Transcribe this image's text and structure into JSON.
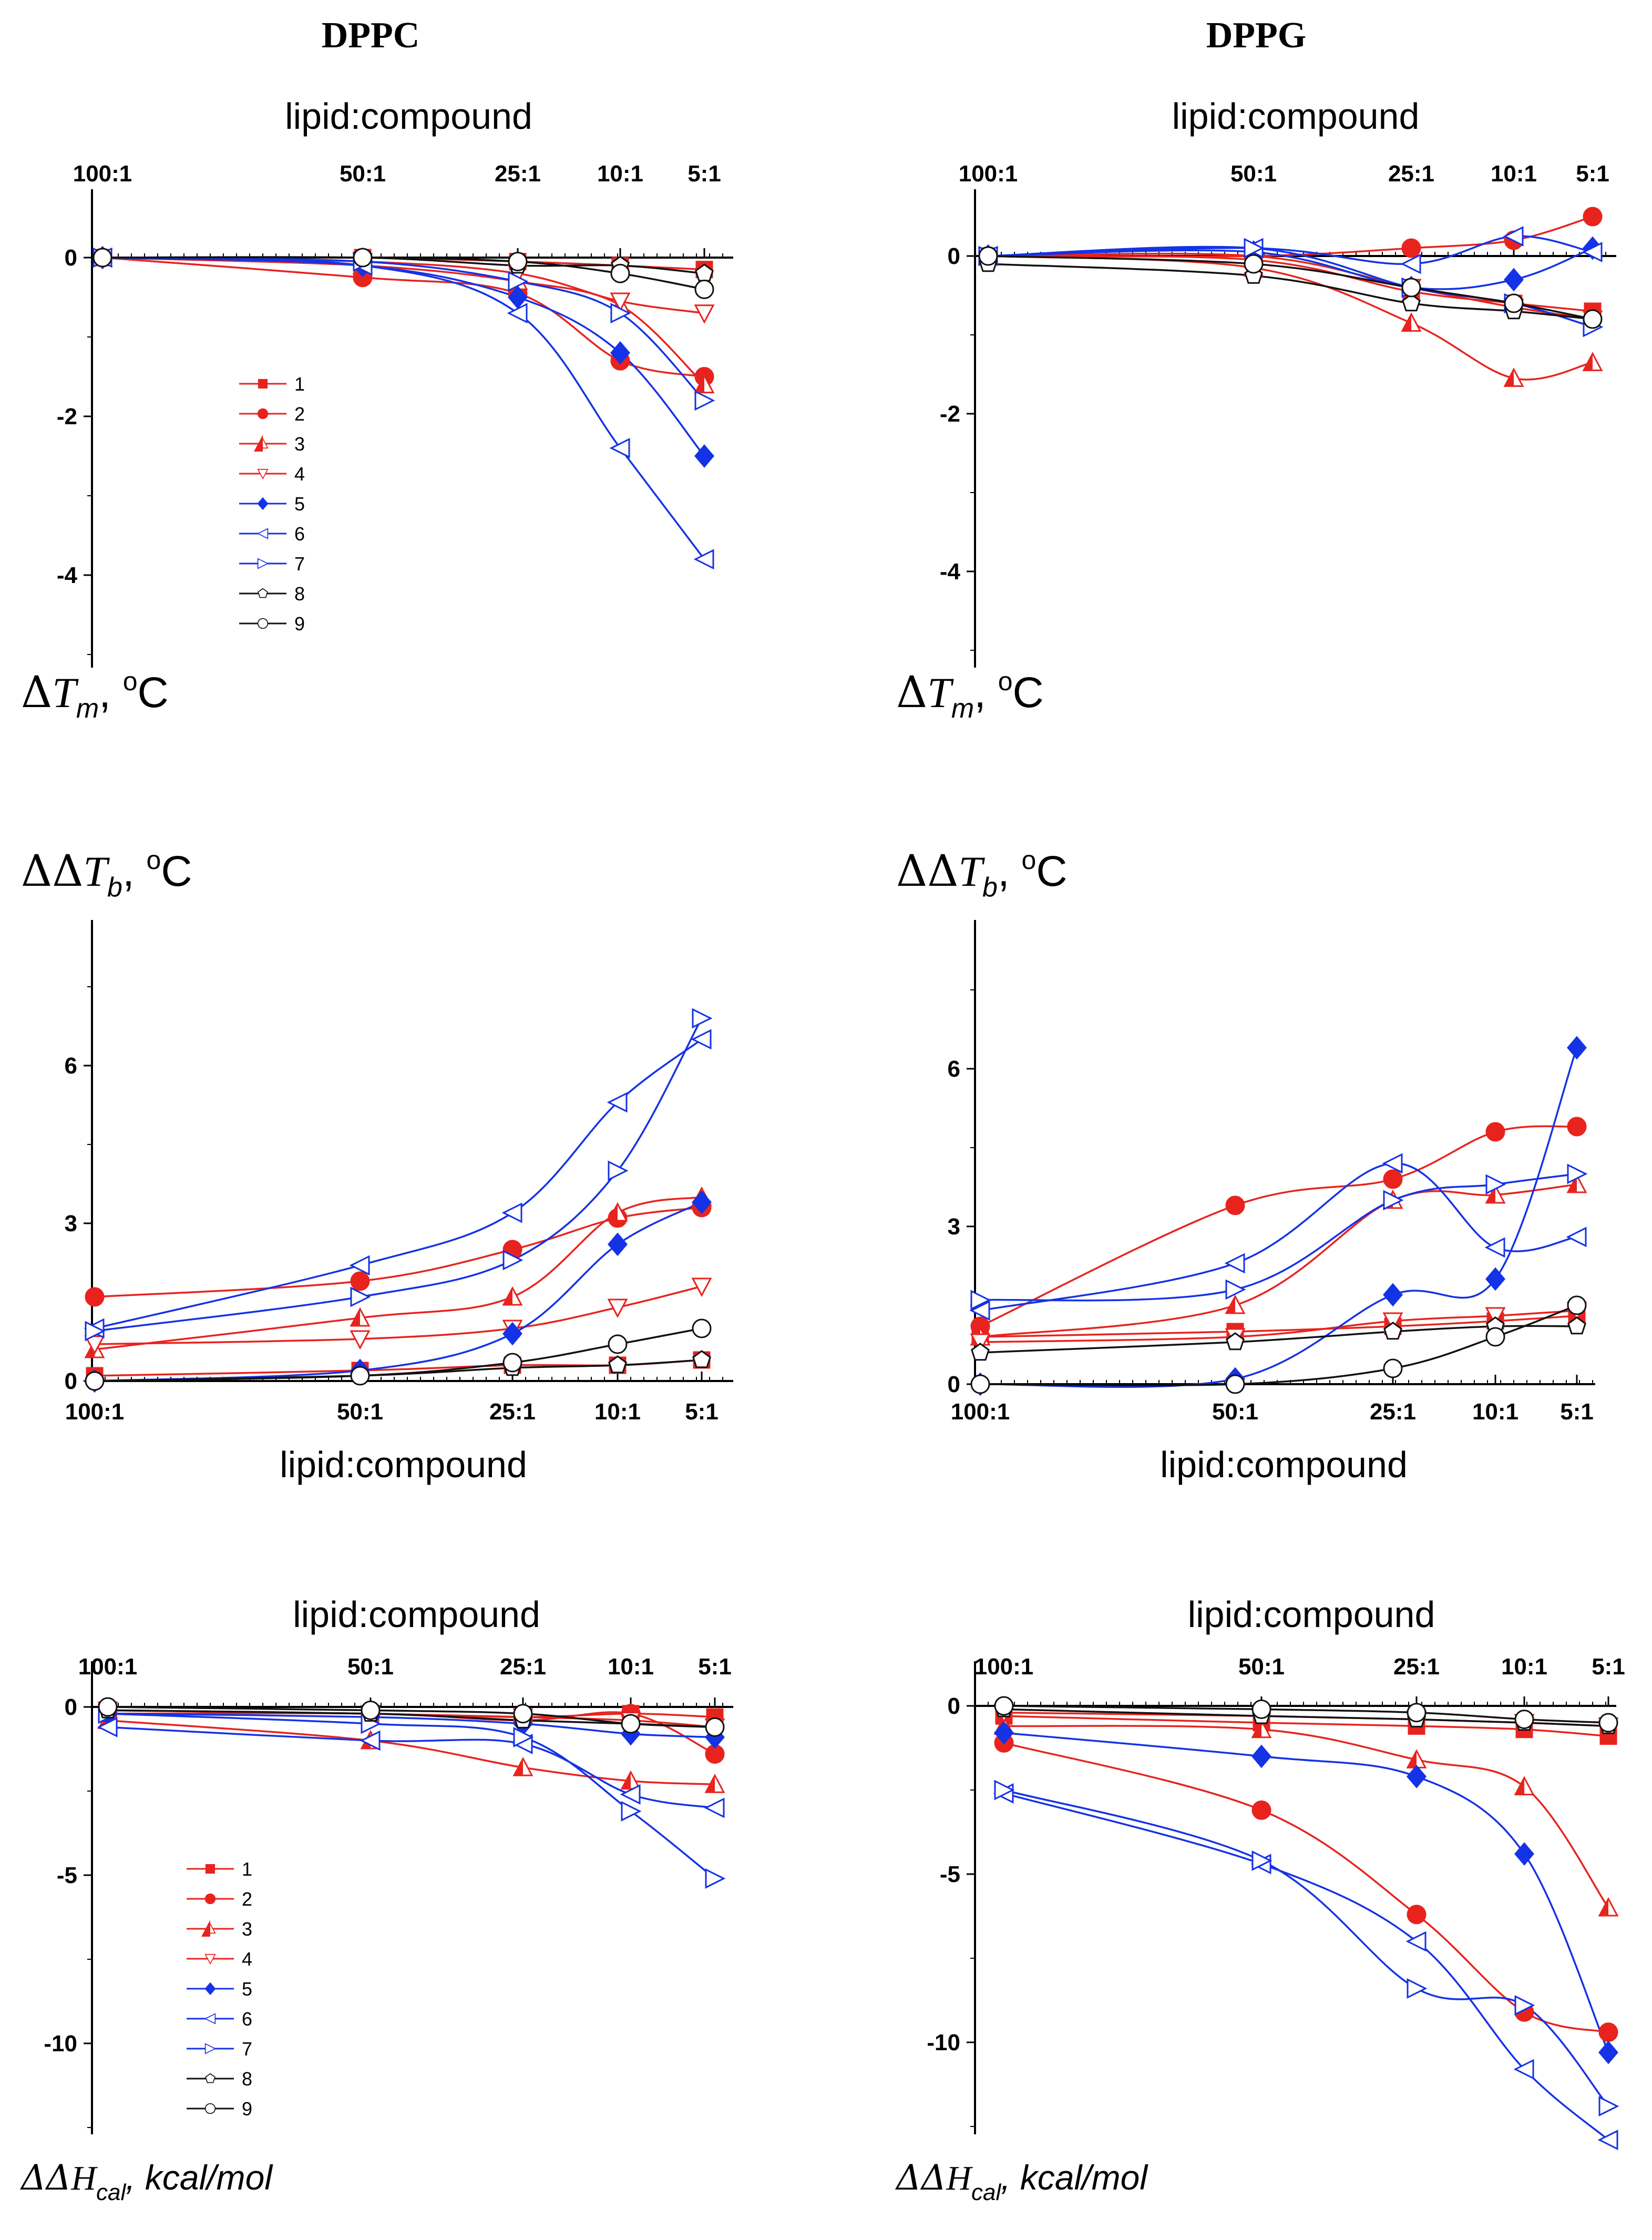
{
  "columns": [
    "DPPC",
    "DPPG"
  ],
  "x_ticks": [
    "100:1",
    "50:1",
    "25:1",
    "10:1",
    "5:1"
  ],
  "x_title": "lipid:compound",
  "legend": [
    "1",
    "2",
    "3",
    "4",
    "5",
    "6",
    "7",
    "8",
    "9"
  ],
  "series_styles": [
    {
      "name": "1",
      "color": "#e8231e",
      "marker": "square",
      "fill": true
    },
    {
      "name": "2",
      "color": "#e8231e",
      "marker": "circle",
      "fill": true
    },
    {
      "name": "3",
      "color": "#e8231e",
      "marker": "triangle-up",
      "fill": "half"
    },
    {
      "name": "4",
      "color": "#e8231e",
      "marker": "triangle-down",
      "fill": false
    },
    {
      "name": "5",
      "color": "#1432e6",
      "marker": "diamond",
      "fill": true
    },
    {
      "name": "6",
      "color": "#1432e6",
      "marker": "triangle-left",
      "fill": false
    },
    {
      "name": "7",
      "color": "#1432e6",
      "marker": "triangle-right",
      "fill": false
    },
    {
      "name": "8",
      "color": "#111111",
      "marker": "pentagon",
      "fill": false
    },
    {
      "name": "9",
      "color": "#111111",
      "marker": "circle",
      "fill": false
    }
  ],
  "chart_data": [
    {
      "type": "line",
      "id": "dppc-tm",
      "title": "DPPC",
      "xlabel": "lipid:compound",
      "ylabel": "ΔTm, oC",
      "ylabel_parts": {
        "delta": "Δ",
        "sym": "T",
        "sub": "m",
        "unit": ", ",
        "sup": "o",
        "unit2": "C"
      },
      "categories": [
        "100:1",
        "50:1",
        "25:1",
        "10:1",
        "5:1"
      ],
      "yticks": [
        0,
        -2,
        -4
      ],
      "ylim": [
        -5.2,
        0.5
      ],
      "series": [
        {
          "name": "1",
          "values": [
            0,
            0,
            -0.05,
            -0.1,
            -0.15
          ]
        },
        {
          "name": "2",
          "values": [
            0,
            -0.25,
            -0.45,
            -1.3,
            -1.5
          ]
        },
        {
          "name": "3",
          "values": [
            0,
            -0.1,
            -0.3,
            -0.6,
            -1.6
          ]
        },
        {
          "name": "4",
          "values": [
            0,
            -0.05,
            -0.2,
            -0.55,
            -0.7
          ]
        },
        {
          "name": "5",
          "values": [
            0,
            -0.1,
            -0.5,
            -1.2,
            -2.5
          ]
        },
        {
          "name": "6",
          "values": [
            0,
            -0.1,
            -0.7,
            -2.4,
            -3.8
          ]
        },
        {
          "name": "7",
          "values": [
            0,
            -0.05,
            -0.3,
            -0.7,
            -1.8
          ]
        },
        {
          "name": "8",
          "values": [
            0,
            0,
            -0.1,
            -0.1,
            -0.2
          ]
        },
        {
          "name": "9",
          "values": [
            0,
            0,
            -0.05,
            -0.2,
            -0.4
          ]
        }
      ]
    },
    {
      "type": "line",
      "id": "dppg-tm",
      "title": "DPPG",
      "xlabel": "lipid:compound",
      "ylabel": "ΔTm, oC",
      "ylabel_parts": {
        "delta": "Δ",
        "sym": "T",
        "sub": "m",
        "unit": ", ",
        "sup": "o",
        "unit2": "C"
      },
      "categories": [
        "100:1",
        "50:1",
        "25:1",
        "10:1",
        "5:1"
      ],
      "yticks": [
        0,
        -2,
        -4
      ],
      "ylim": [
        -5.2,
        0.5
      ],
      "series": [
        {
          "name": "1",
          "values": [
            0,
            -0.05,
            -0.45,
            -0.6,
            -0.7
          ]
        },
        {
          "name": "2",
          "values": [
            0,
            0,
            0.1,
            0.2,
            0.5
          ]
        },
        {
          "name": "3",
          "values": [
            0,
            -0.15,
            -0.85,
            -1.55,
            -1.35
          ]
        },
        {
          "name": "4",
          "values": [
            0,
            0,
            -0.4,
            -0.65,
            -0.8
          ]
        },
        {
          "name": "5",
          "values": [
            0,
            0.05,
            -0.4,
            -0.3,
            0.1
          ]
        },
        {
          "name": "6",
          "values": [
            0,
            0.1,
            -0.1,
            0.25,
            0.05
          ]
        },
        {
          "name": "7",
          "values": [
            0,
            0.1,
            -0.4,
            -0.6,
            -0.9
          ]
        },
        {
          "name": "8",
          "values": [
            -0.1,
            -0.25,
            -0.6,
            -0.7,
            -0.8
          ]
        },
        {
          "name": "9",
          "values": [
            0,
            -0.1,
            -0.4,
            -0.6,
            -0.8
          ]
        }
      ]
    },
    {
      "type": "line",
      "id": "dppc-tb",
      "title": "DPPC",
      "xlabel": "lipid:compound",
      "ylabel": "ΔΔTb, oC",
      "ylabel_parts": {
        "delta": "ΔΔ",
        "sym": "T",
        "sub": "b",
        "unit": ", ",
        "sup": "o",
        "unit2": "C"
      },
      "categories": [
        "100:1",
        "50:1",
        "25:1",
        "10:1",
        "5:1"
      ],
      "yticks": [
        0,
        3,
        6
      ],
      "ylim": [
        0,
        8.8
      ],
      "series": [
        {
          "name": "1",
          "values": [
            0.1,
            0.2,
            0.3,
            0.3,
            0.4
          ]
        },
        {
          "name": "2",
          "values": [
            1.6,
            1.9,
            2.5,
            3.1,
            3.3
          ]
        },
        {
          "name": "3",
          "values": [
            0.6,
            1.2,
            1.6,
            3.2,
            3.5
          ]
        },
        {
          "name": "4",
          "values": [
            0.7,
            0.8,
            1.0,
            1.4,
            1.8
          ]
        },
        {
          "name": "5",
          "values": [
            0,
            0.2,
            0.9,
            2.6,
            3.4
          ]
        },
        {
          "name": "6",
          "values": [
            1.0,
            2.2,
            3.2,
            5.3,
            6.5
          ]
        },
        {
          "name": "7",
          "values": [
            0.95,
            1.6,
            2.3,
            4.0,
            6.9
          ]
        },
        {
          "name": "8",
          "values": [
            0,
            0.1,
            0.25,
            0.3,
            0.4
          ]
        },
        {
          "name": "9",
          "values": [
            0,
            0.1,
            0.35,
            0.7,
            1.0
          ]
        }
      ]
    },
    {
      "type": "line",
      "id": "dppg-tb",
      "title": "DPPG",
      "xlabel": "lipid:compound",
      "ylabel": "ΔΔTb, oC",
      "ylabel_parts": {
        "delta": "ΔΔ",
        "sym": "T",
        "sub": "b",
        "unit": ", ",
        "sup": "o",
        "unit2": "C"
      },
      "categories": [
        "100:1",
        "50:1",
        "25:1",
        "10:1",
        "5:1"
      ],
      "yticks": [
        0,
        3,
        6
      ],
      "ylim": [
        0,
        8.8
      ],
      "series": [
        {
          "name": "1",
          "values": [
            0.9,
            1.0,
            1.1,
            1.2,
            1.3
          ]
        },
        {
          "name": "2",
          "values": [
            1.1,
            3.4,
            3.9,
            4.8,
            4.9
          ]
        },
        {
          "name": "3",
          "values": [
            0.9,
            1.5,
            3.5,
            3.6,
            3.8
          ]
        },
        {
          "name": "4",
          "values": [
            0.8,
            0.9,
            1.2,
            1.3,
            1.4
          ]
        },
        {
          "name": "5",
          "values": [
            0,
            0.1,
            1.7,
            2.0,
            6.4
          ]
        },
        {
          "name": "6",
          "values": [
            1.4,
            2.3,
            4.2,
            2.6,
            2.8
          ]
        },
        {
          "name": "7",
          "values": [
            1.6,
            1.8,
            3.5,
            3.8,
            4.0
          ]
        },
        {
          "name": "8",
          "values": [
            0.6,
            0.8,
            1.0,
            1.1,
            1.1
          ]
        },
        {
          "name": "9",
          "values": [
            0,
            0,
            0.3,
            0.9,
            1.5
          ]
        }
      ]
    },
    {
      "type": "line",
      "id": "dppc-h",
      "title": "DPPC",
      "xlabel": "lipid:compound",
      "ylabel": "ΔΔHcal, kcal/mol",
      "ylabel_parts": {
        "delta": "ΔΔ",
        "sym": "H",
        "sub": "cal",
        "unit": ", kcal/mol",
        "sup": "",
        "unit2": ""
      },
      "categories": [
        "100:1",
        "50:1",
        "25:1",
        "10:1",
        "5:1"
      ],
      "yticks": [
        0,
        -5,
        -10
      ],
      "ylim": [
        -13.5,
        1.0
      ],
      "series": [
        {
          "name": "1",
          "values": [
            -0.1,
            -0.2,
            -0.3,
            -0.2,
            -0.3
          ]
        },
        {
          "name": "2",
          "values": [
            -0.2,
            -0.2,
            -0.4,
            -0.2,
            -1.4
          ]
        },
        {
          "name": "3",
          "values": [
            -0.4,
            -1.0,
            -1.8,
            -2.2,
            -2.3
          ]
        },
        {
          "name": "4",
          "values": [
            -0.1,
            -0.2,
            -0.3,
            -0.4,
            -0.6
          ]
        },
        {
          "name": "5",
          "values": [
            -0.2,
            -0.3,
            -0.5,
            -0.8,
            -0.9
          ]
        },
        {
          "name": "6",
          "values": [
            -0.6,
            -1.0,
            -1.1,
            -2.6,
            -3.0
          ]
        },
        {
          "name": "7",
          "values": [
            -0.2,
            -0.5,
            -0.9,
            -3.1,
            -5.1
          ]
        },
        {
          "name": "8",
          "values": [
            -0.1,
            -0.2,
            -0.4,
            -0.5,
            -0.6
          ]
        },
        {
          "name": "9",
          "values": [
            0,
            -0.1,
            -0.2,
            -0.5,
            -0.6
          ]
        }
      ]
    },
    {
      "type": "line",
      "id": "dppg-h",
      "title": "DPPG",
      "xlabel": "lipid:compound",
      "ylabel": "ΔΔHcal, kcal/mol",
      "ylabel_parts": {
        "delta": "ΔΔ",
        "sym": "H",
        "sub": "cal",
        "unit": ", kcal/mol",
        "sup": "",
        "unit2": ""
      },
      "categories": [
        "100:1",
        "50:1",
        "25:1",
        "10:1",
        "5:1"
      ],
      "yticks": [
        0,
        -5,
        -10
      ],
      "ylim": [
        -13.5,
        1.0
      ],
      "series": [
        {
          "name": "1",
          "values": [
            -0.3,
            -0.5,
            -0.6,
            -0.7,
            -0.9
          ]
        },
        {
          "name": "2",
          "values": [
            -1.1,
            -3.1,
            -6.2,
            -9.1,
            -9.7
          ]
        },
        {
          "name": "3",
          "values": [
            -0.6,
            -0.7,
            -1.6,
            -2.4,
            -6.0
          ]
        },
        {
          "name": "4",
          "values": [
            -0.2,
            -0.3,
            -0.4,
            -0.5,
            -0.6
          ]
        },
        {
          "name": "5",
          "values": [
            -0.8,
            -1.5,
            -2.1,
            -4.4,
            -10.3
          ]
        },
        {
          "name": "6",
          "values": [
            -2.6,
            -4.7,
            -7.0,
            -10.8,
            -12.9
          ]
        },
        {
          "name": "7",
          "values": [
            -2.5,
            -4.6,
            -8.4,
            -8.9,
            -11.9
          ]
        },
        {
          "name": "8",
          "values": [
            -0.1,
            -0.3,
            -0.4,
            -0.5,
            -0.6
          ]
        },
        {
          "name": "9",
          "values": [
            0,
            -0.1,
            -0.2,
            -0.4,
            -0.5
          ]
        }
      ]
    }
  ]
}
